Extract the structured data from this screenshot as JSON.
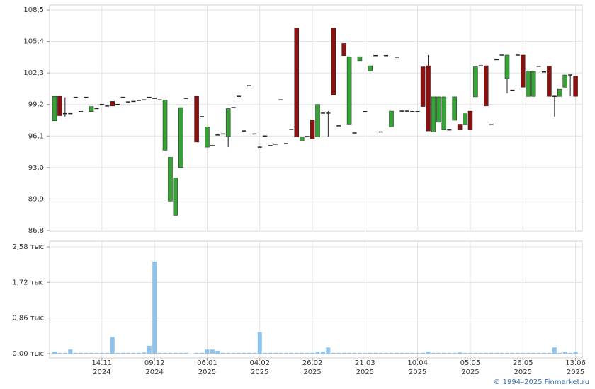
{
  "chart_data": [
    {
      "type": "candlestick",
      "up_color": "#35a335",
      "down_color": "#8b1010",
      "flat_color": "#222222",
      "ylim": [
        86.8,
        108.5
      ],
      "yticks": [
        {
          "value": 86.8,
          "label": "86,8"
        },
        {
          "value": 89.9,
          "label": "89,9"
        },
        {
          "value": 93.0,
          "label": "93,0"
        },
        {
          "value": 96.1,
          "label": "96,1"
        },
        {
          "value": 99.2,
          "label": "99,2"
        },
        {
          "value": 102.3,
          "label": "102,3"
        },
        {
          "value": 105.4,
          "label": "105,4"
        },
        {
          "value": 108.5,
          "label": "108,5"
        }
      ],
      "grid": true,
      "open": [
        97.6,
        100.0,
        98.3,
        98.3,
        99.9,
        98.5,
        99.9,
        98.5,
        98.8,
        99.2,
        99.05,
        99.5,
        99.2,
        99.9,
        99.45,
        99.5,
        99.6,
        99.65,
        99.9,
        99.8,
        99.65,
        94.7,
        89.7,
        88.3,
        93.0,
        99.8,
        null,
        100.0,
        98.0,
        95.0,
        95.15,
        96.2,
        96.3,
        96.05,
        98.9,
        100.0,
        96.6,
        101.05,
        96.3,
        95.0,
        96.1,
        95.15,
        95.3,
        99.65,
        95.35,
        96.75,
        106.7,
        95.6,
        96.05,
        97.7,
        96.0,
        98.35,
        98.35,
        106.7,
        97.1,
        105.2,
        97.2,
        96.4,
        103.5,
        98.5,
        102.5,
        104.0,
        96.5,
        104.0,
        97.0,
        103.85,
        98.55,
        98.55,
        98.5,
        98.5,
        102.9,
        103.0,
        96.5,
        97.45,
        96.7,
        96.7,
        97.65,
        97.2,
        97.2,
        98.55,
        99.95,
        103.0,
        103.0,
        97.25,
        103.6,
        104.05,
        101.75,
        100.6,
        104.05,
        104.05,
        100.0,
        100.0,
        102.95,
        102.4,
        102.95,
        100.0,
        100.0,
        100.9,
        102.1,
        102.0
      ],
      "high": [
        100.0,
        100.0,
        99.9,
        98.3,
        99.9,
        98.5,
        99.9,
        99.0,
        98.8,
        99.2,
        99.05,
        99.5,
        99.2,
        99.9,
        99.45,
        99.5,
        99.6,
        99.65,
        99.9,
        99.8,
        99.65,
        99.65,
        94.0,
        92.0,
        98.9,
        99.8,
        null,
        100.0,
        98.0,
        97.0,
        95.15,
        96.2,
        96.3,
        98.8,
        98.9,
        100.0,
        96.6,
        101.05,
        96.3,
        95.0,
        96.1,
        95.15,
        95.3,
        99.65,
        95.35,
        96.75,
        106.7,
        96.0,
        96.05,
        97.7,
        99.2,
        98.35,
        98.55,
        106.7,
        97.1,
        105.2,
        103.9,
        96.4,
        103.9,
        98.5,
        103.0,
        104.0,
        96.5,
        104.0,
        98.55,
        103.85,
        98.55,
        98.55,
        98.5,
        98.5,
        102.9,
        104.05,
        99.95,
        99.95,
        99.95,
        96.7,
        99.95,
        97.2,
        98.3,
        98.55,
        102.9,
        103.0,
        103.0,
        97.25,
        103.6,
        104.05,
        104.05,
        100.6,
        104.05,
        104.05,
        102.5,
        102.45,
        102.95,
        102.4,
        102.95,
        100.0,
        100.7,
        102.1,
        102.1,
        102.0
      ],
      "low": [
        97.6,
        98.1,
        98.0,
        98.3,
        99.9,
        98.5,
        99.9,
        98.5,
        98.8,
        99.2,
        99.05,
        99.05,
        99.2,
        99.9,
        99.45,
        99.5,
        99.6,
        99.65,
        99.9,
        99.8,
        99.65,
        94.7,
        89.7,
        88.3,
        93.0,
        99.8,
        null,
        95.5,
        98.0,
        95.0,
        95.15,
        96.2,
        96.3,
        95.0,
        98.9,
        100.0,
        96.6,
        101.05,
        96.3,
        95.0,
        96.1,
        95.15,
        95.3,
        99.65,
        95.35,
        96.75,
        96.0,
        95.6,
        96.05,
        95.8,
        96.0,
        98.35,
        96.05,
        100.1,
        97.1,
        104.0,
        97.2,
        96.4,
        103.5,
        98.5,
        102.5,
        104.0,
        96.5,
        104.0,
        97.0,
        103.85,
        98.55,
        98.55,
        98.5,
        98.5,
        99.0,
        96.6,
        96.5,
        97.45,
        96.7,
        96.7,
        97.65,
        96.7,
        97.2,
        96.7,
        99.95,
        103.0,
        99.05,
        97.25,
        103.6,
        104.05,
        100.3,
        100.6,
        104.05,
        100.9,
        100.0,
        100.0,
        102.95,
        102.4,
        100.0,
        98.0,
        100.0,
        100.9,
        100.0,
        100.0
      ],
      "close": [
        100.0,
        98.1,
        98.3,
        98.3,
        99.9,
        98.5,
        99.9,
        99.0,
        98.8,
        99.2,
        99.05,
        99.05,
        99.2,
        99.9,
        99.45,
        99.5,
        99.6,
        99.65,
        99.9,
        99.8,
        99.65,
        99.65,
        94.0,
        92.0,
        98.9,
        99.8,
        null,
        95.5,
        98.0,
        97.0,
        95.15,
        96.2,
        96.3,
        98.8,
        98.9,
        100.0,
        96.6,
        101.05,
        96.3,
        95.0,
        96.1,
        95.15,
        95.3,
        99.65,
        95.35,
        96.75,
        96.0,
        96.0,
        96.05,
        95.8,
        99.2,
        98.35,
        98.35,
        100.1,
        97.1,
        104.0,
        103.9,
        96.4,
        103.9,
        98.5,
        103.0,
        104.0,
        96.5,
        104.0,
        98.55,
        103.85,
        98.55,
        98.55,
        98.5,
        98.5,
        99.0,
        96.6,
        99.95,
        99.95,
        99.95,
        96.7,
        99.95,
        96.7,
        98.3,
        96.7,
        102.9,
        103.0,
        99.05,
        97.25,
        103.6,
        104.05,
        104.05,
        100.6,
        104.05,
        100.9,
        102.5,
        102.45,
        102.95,
        102.4,
        100.0,
        100.0,
        100.7,
        102.1,
        102.1,
        100.0
      ]
    },
    {
      "type": "bar",
      "color": "#8cc4ef",
      "ylim": [
        0,
        2.58
      ],
      "yticks": [
        {
          "value": 0,
          "label": "0,00 тыс"
        },
        {
          "value": 0.86,
          "label": "0,86 тыс"
        },
        {
          "value": 1.72,
          "label": "1,72 тыс"
        },
        {
          "value": 2.58,
          "label": "2,58 тыс"
        }
      ],
      "grid": true,
      "categories": [
        null,
        null,
        null,
        null,
        null,
        null,
        null,
        null,
        null,
        "14.11\n2024",
        null,
        null,
        null,
        null,
        null,
        null,
        null,
        null,
        null,
        "09.12\n2024",
        null,
        null,
        null,
        null,
        null,
        null,
        null,
        null,
        null,
        "06.01\n2025",
        null,
        null,
        null,
        null,
        null,
        null,
        null,
        null,
        null,
        "04.02\n2025",
        null,
        null,
        null,
        null,
        null,
        null,
        null,
        null,
        null,
        "26.02\n2025",
        null,
        null,
        null,
        null,
        null,
        null,
        null,
        null,
        null,
        "21.03\n2025",
        null,
        null,
        null,
        null,
        null,
        null,
        null,
        null,
        null,
        "10.04\n2025",
        null,
        null,
        null,
        null,
        null,
        null,
        null,
        null,
        null,
        "05.05\n2025",
        null,
        null,
        null,
        null,
        null,
        null,
        null,
        null,
        null,
        "26.05\n2025",
        null,
        null,
        null,
        null,
        null,
        null,
        null,
        null,
        null,
        "13.06\n2025"
      ],
      "values": [
        0.05,
        0.02,
        0.02,
        0.1,
        0.02,
        0.02,
        0.02,
        0.02,
        0.02,
        0.02,
        0.02,
        0.4,
        0.02,
        0.02,
        0.02,
        0.02,
        0.02,
        0.03,
        0.19,
        2.22,
        0.02,
        0.02,
        0.02,
        0.02,
        0.02,
        0.02,
        null,
        0.02,
        0.02,
        0.1,
        0.1,
        0.07,
        0.02,
        0.02,
        0.02,
        0.02,
        0.02,
        0.02,
        0.02,
        0.52,
        0.02,
        0.02,
        0.02,
        0.02,
        0.02,
        0.02,
        0.02,
        0.02,
        0.02,
        0.02,
        0.05,
        0.05,
        0.15,
        0.02,
        0.02,
        0.02,
        0.02,
        0.02,
        0.02,
        0.02,
        0.02,
        0.02,
        0.02,
        0.02,
        0.02,
        0.02,
        0.02,
        0.02,
        0.02,
        0.02,
        0.02,
        0.05,
        0.02,
        0.02,
        0.02,
        0.02,
        0.02,
        0.03,
        0.02,
        0.02,
        0.02,
        0.02,
        0.02,
        0.02,
        0.02,
        0.02,
        0.02,
        0.02,
        0.02,
        0.02,
        0.02,
        0.02,
        0.02,
        0.02,
        0.02,
        0.15,
        0.02,
        0.04,
        0.02,
        0.05
      ]
    }
  ],
  "footer": "© 1994–2025 Finmarket.ru"
}
